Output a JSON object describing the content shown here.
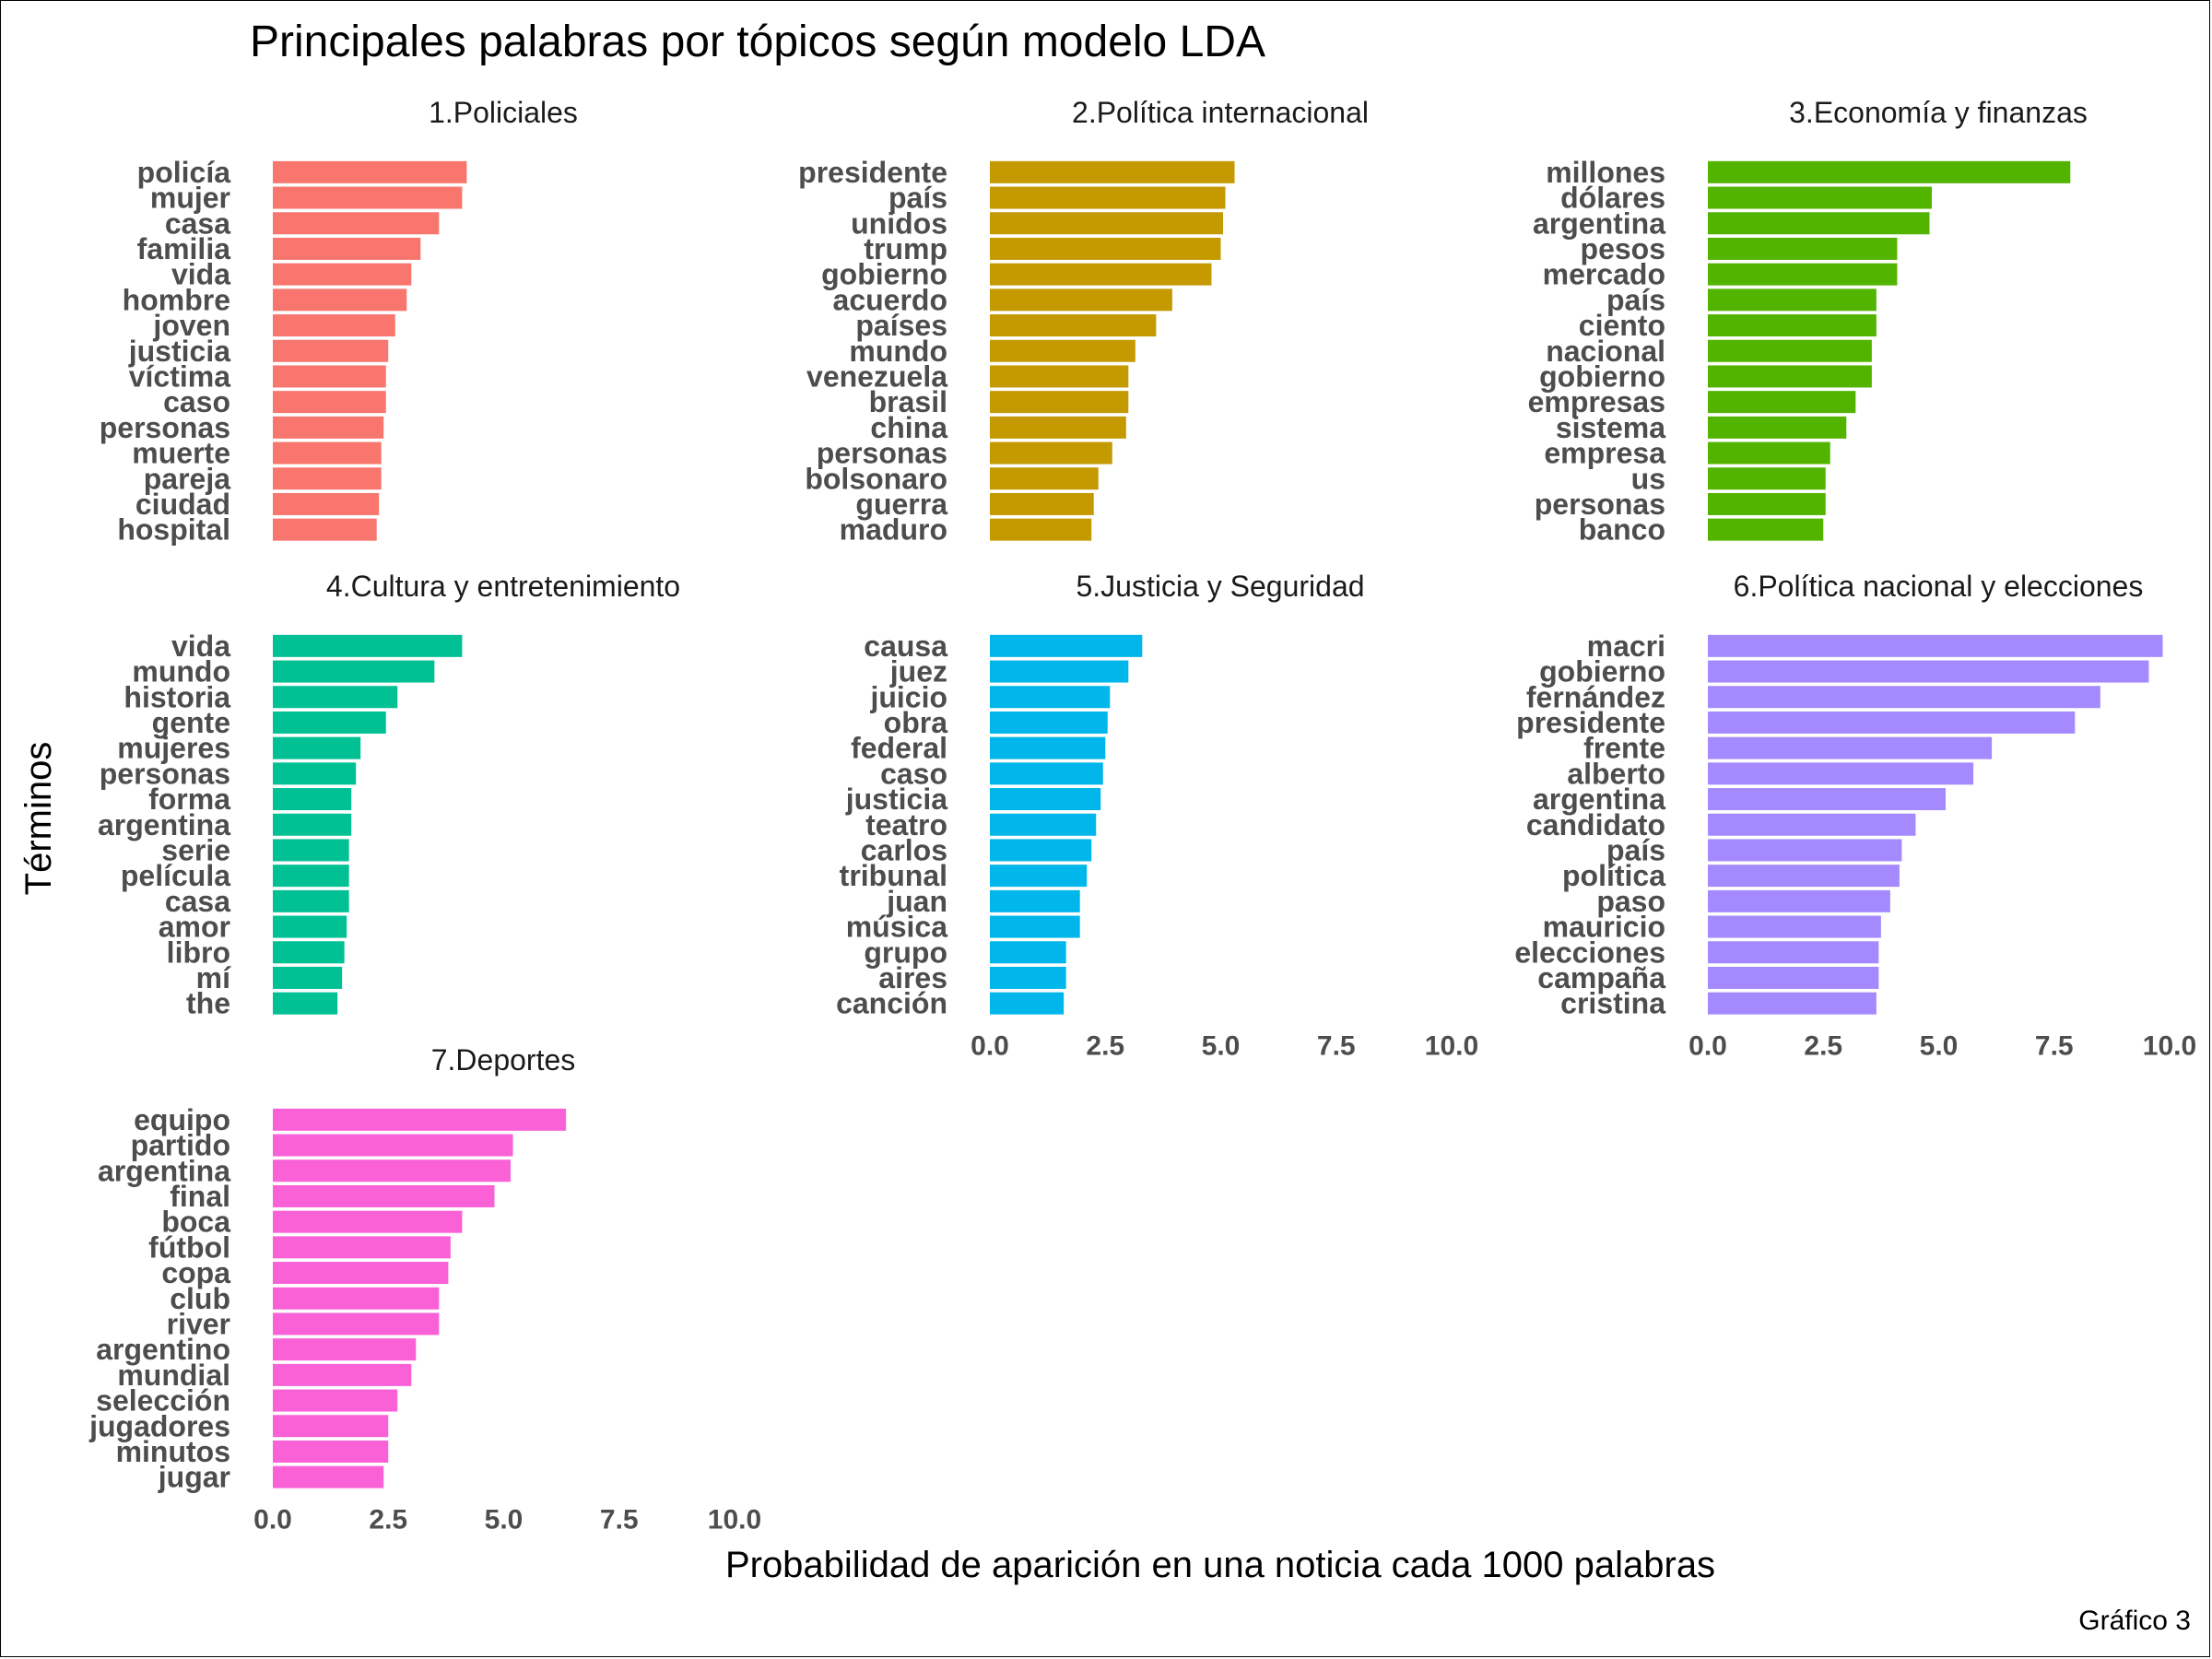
{
  "chart_data": {
    "type": "bar",
    "orientation": "horizontal",
    "layout": "facet-wrap 3 columns",
    "title": "Principales palabras por tópicos según modelo LDA",
    "xlabel": "Probabilidad de aparición en una noticia cada 1000 palabras",
    "ylabel": "Términos",
    "caption": "Gráfico 3",
    "xlim": [
      0,
      10
    ],
    "xticks": [
      "0.0",
      "2.5",
      "5.0",
      "7.5",
      "10.0"
    ],
    "grid": false,
    "facets": [
      {
        "label": "1.Policiales",
        "color": "#F8766D",
        "terms": [
          "policía",
          "mujer",
          "casa",
          "familia",
          "vida",
          "hombre",
          "joven",
          "justicia",
          "víctima",
          "caso",
          "personas",
          "muerte",
          "pareja",
          "ciudad",
          "hospital"
        ],
        "values": [
          4.2,
          4.1,
          3.6,
          3.2,
          3.0,
          2.9,
          2.65,
          2.5,
          2.45,
          2.45,
          2.4,
          2.35,
          2.35,
          2.3,
          2.25
        ]
      },
      {
        "label": "2.Política internacional",
        "color": "#C49A00",
        "terms": [
          "presidente",
          "país",
          "unidos",
          "trump",
          "gobierno",
          "acuerdo",
          "países",
          "mundo",
          "venezuela",
          "brasil",
          "china",
          "personas",
          "bolsonaro",
          "guerra",
          "maduro"
        ],
        "values": [
          5.3,
          5.1,
          5.05,
          5.0,
          4.8,
          3.95,
          3.6,
          3.15,
          3.0,
          3.0,
          2.95,
          2.65,
          2.35,
          2.25,
          2.2
        ]
      },
      {
        "label": "3.Economía y finanzas",
        "color": "#53B400",
        "terms": [
          "millones",
          "dólares",
          "argentina",
          "pesos",
          "mercado",
          "país",
          "ciento",
          "nacional",
          "gobierno",
          "empresas",
          "sistema",
          "empresa",
          "us",
          "personas",
          "banco"
        ],
        "values": [
          7.85,
          4.85,
          4.8,
          4.1,
          4.1,
          3.65,
          3.65,
          3.55,
          3.55,
          3.2,
          3.0,
          2.65,
          2.55,
          2.55,
          2.5
        ]
      },
      {
        "label": "4.Cultura y entretenimiento",
        "color": "#00C094",
        "terms": [
          "vida",
          "mundo",
          "historia",
          "gente",
          "mujeres",
          "personas",
          "forma",
          "argentina",
          "serie",
          "película",
          "casa",
          "amor",
          "libro",
          "mí",
          "the"
        ],
        "values": [
          4.1,
          3.5,
          2.7,
          2.45,
          1.9,
          1.8,
          1.7,
          1.7,
          1.65,
          1.65,
          1.65,
          1.6,
          1.55,
          1.5,
          1.4
        ]
      },
      {
        "label": "5.Justicia y Seguridad",
        "color": "#00B6EB",
        "terms": [
          "causa",
          "juez",
          "juicio",
          "obra",
          "federal",
          "caso",
          "justicia",
          "teatro",
          "carlos",
          "tribunal",
          "juan",
          "música",
          "grupo",
          "aires",
          "canción"
        ],
        "values": [
          3.3,
          3.0,
          2.6,
          2.55,
          2.5,
          2.45,
          2.4,
          2.3,
          2.2,
          2.1,
          1.95,
          1.95,
          1.65,
          1.65,
          1.6
        ]
      },
      {
        "label": "6.Política nacional y elecciones",
        "color": "#A58AFF",
        "terms": [
          "macri",
          "gobierno",
          "fernández",
          "presidente",
          "frente",
          "alberto",
          "argentina",
          "candidato",
          "país",
          "política",
          "paso",
          "mauricio",
          "elecciones",
          "campaña",
          "cristina"
        ],
        "values": [
          9.85,
          9.55,
          8.5,
          7.95,
          6.15,
          5.75,
          5.15,
          4.5,
          4.2,
          4.15,
          3.95,
          3.75,
          3.7,
          3.7,
          3.65
        ]
      },
      {
        "label": "7.Deportes",
        "color": "#FB61D7",
        "terms": [
          "equipo",
          "partido",
          "argentina",
          "final",
          "boca",
          "fútbol",
          "copa",
          "club",
          "river",
          "argentino",
          "mundial",
          "selección",
          "jugadores",
          "minutos",
          "jugar"
        ],
        "values": [
          6.35,
          5.2,
          5.15,
          4.8,
          4.1,
          3.85,
          3.8,
          3.6,
          3.6,
          3.1,
          3.0,
          2.7,
          2.5,
          2.5,
          2.4
        ]
      }
    ]
  }
}
